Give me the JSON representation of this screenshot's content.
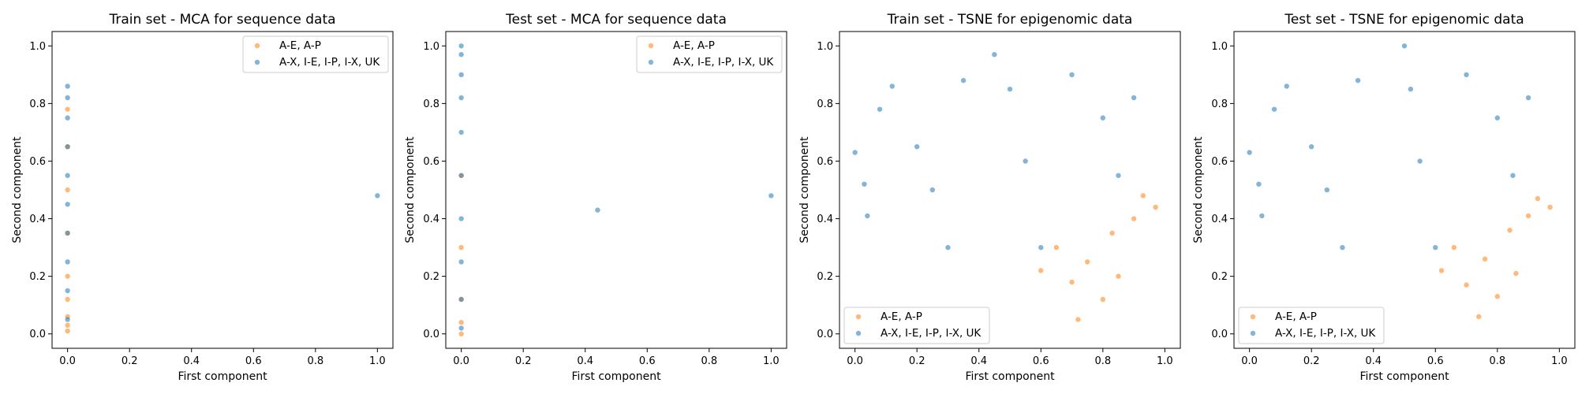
{
  "colors": {
    "series_a": "#ff7f0e",
    "series_b": "#1f77b4"
  },
  "chart_data": [
    {
      "type": "scatter",
      "title": "Train set - MCA for sequence data",
      "xlabel": "First component",
      "ylabel": "Second component",
      "xlim": [
        -0.05,
        1.05
      ],
      "ylim": [
        -0.05,
        1.05
      ],
      "xticks": [
        "0.0",
        "0.2",
        "0.4",
        "0.6",
        "0.8",
        "1.0"
      ],
      "yticks": [
        "0.0",
        "0.2",
        "0.4",
        "0.6",
        "0.8",
        "1.0"
      ],
      "legend_position": "top-right",
      "series": [
        {
          "name": "A-E, A-P",
          "color": "#ff7f0e",
          "points": [
            [
              0,
              0.01
            ],
            [
              0,
              0.03
            ],
            [
              0,
              0.06
            ],
            [
              0,
              0.12
            ],
            [
              0,
              0.2
            ],
            [
              0,
              0.35
            ],
            [
              0,
              0.5
            ],
            [
              0,
              0.65
            ],
            [
              0,
              0.78
            ]
          ]
        },
        {
          "name": "A-X, I-E, I-P, I-X, UK",
          "color": "#1f77b4",
          "points": [
            [
              0,
              0.05
            ],
            [
              0,
              0.15
            ],
            [
              0,
              0.25
            ],
            [
              0,
              0.35
            ],
            [
              0,
              0.45
            ],
            [
              0,
              0.55
            ],
            [
              0,
              0.65
            ],
            [
              0,
              0.75
            ],
            [
              0,
              0.82
            ],
            [
              0,
              0.86
            ],
            [
              1.0,
              0.48
            ]
          ]
        }
      ]
    },
    {
      "type": "scatter",
      "title": "Test set - MCA for sequence data",
      "xlabel": "First component",
      "ylabel": "Second component",
      "xlim": [
        -0.05,
        1.05
      ],
      "ylim": [
        -0.05,
        1.05
      ],
      "xticks": [
        "0.0",
        "0.2",
        "0.4",
        "0.6",
        "0.8",
        "1.0"
      ],
      "yticks": [
        "0.0",
        "0.2",
        "0.4",
        "0.6",
        "0.8",
        "1.0"
      ],
      "legend_position": "top-right",
      "series": [
        {
          "name": "A-E, A-P",
          "color": "#ff7f0e",
          "points": [
            [
              0,
              0.0
            ],
            [
              0,
              0.04
            ],
            [
              0,
              0.12
            ],
            [
              0,
              0.3
            ],
            [
              0,
              0.55
            ]
          ]
        },
        {
          "name": "A-X, I-E, I-P, I-X, UK",
          "color": "#1f77b4",
          "points": [
            [
              0,
              0.02
            ],
            [
              0,
              0.12
            ],
            [
              0,
              0.25
            ],
            [
              0,
              0.4
            ],
            [
              0,
              0.55
            ],
            [
              0,
              0.7
            ],
            [
              0,
              0.82
            ],
            [
              0,
              0.9
            ],
            [
              0,
              0.97
            ],
            [
              0,
              1.0
            ],
            [
              0.44,
              0.43
            ],
            [
              1.0,
              0.48
            ]
          ]
        }
      ]
    },
    {
      "type": "scatter",
      "title": "Train set - TSNE for epigenomic data",
      "xlabel": "First component",
      "ylabel": "Second component",
      "xlim": [
        -0.05,
        1.05
      ],
      "ylim": [
        -0.05,
        1.05
      ],
      "xticks": [
        "0.0",
        "0.2",
        "0.4",
        "0.6",
        "0.8",
        "1.0"
      ],
      "yticks": [
        "0.0",
        "0.2",
        "0.4",
        "0.6",
        "0.8",
        "1.0"
      ],
      "legend_position": "bottom-left",
      "series": [
        {
          "name": "A-E, A-P",
          "color": "#ff7f0e",
          "points": [
            [
              0.6,
              0.22
            ],
            [
              0.65,
              0.3
            ],
            [
              0.7,
              0.18
            ],
            [
              0.72,
              0.05
            ],
            [
              0.75,
              0.25
            ],
            [
              0.8,
              0.12
            ],
            [
              0.83,
              0.35
            ],
            [
              0.85,
              0.2
            ],
            [
              0.9,
              0.4
            ],
            [
              0.93,
              0.48
            ],
            [
              0.97,
              0.44
            ]
          ]
        },
        {
          "name": "A-X, I-E, I-P, I-X, UK",
          "color": "#1f77b4",
          "points": [
            [
              0.0,
              0.63
            ],
            [
              0.03,
              0.52
            ],
            [
              0.04,
              0.41
            ],
            [
              0.08,
              0.78
            ],
            [
              0.12,
              0.86
            ],
            [
              0.2,
              0.65
            ],
            [
              0.25,
              0.5
            ],
            [
              0.3,
              0.3
            ],
            [
              0.35,
              0.88
            ],
            [
              0.45,
              0.97
            ],
            [
              0.5,
              0.85
            ],
            [
              0.55,
              0.6
            ],
            [
              0.6,
              0.3
            ],
            [
              0.7,
              0.9
            ],
            [
              0.8,
              0.75
            ],
            [
              0.85,
              0.55
            ],
            [
              0.9,
              0.82
            ]
          ]
        }
      ]
    },
    {
      "type": "scatter",
      "title": "Test set - TSNE for epigenomic data",
      "xlabel": "First component",
      "ylabel": "Second component",
      "xlim": [
        -0.05,
        1.05
      ],
      "ylim": [
        -0.05,
        1.05
      ],
      "xticks": [
        "0.0",
        "0.2",
        "0.4",
        "0.6",
        "0.8",
        "1.0"
      ],
      "yticks": [
        "0.0",
        "0.2",
        "0.4",
        "0.6",
        "0.8",
        "1.0"
      ],
      "legend_position": "bottom-left",
      "series": [
        {
          "name": "A-E, A-P",
          "color": "#ff7f0e",
          "points": [
            [
              0.62,
              0.22
            ],
            [
              0.66,
              0.3
            ],
            [
              0.7,
              0.17
            ],
            [
              0.74,
              0.06
            ],
            [
              0.76,
              0.26
            ],
            [
              0.8,
              0.13
            ],
            [
              0.84,
              0.36
            ],
            [
              0.86,
              0.21
            ],
            [
              0.9,
              0.41
            ],
            [
              0.93,
              0.47
            ],
            [
              0.97,
              0.44
            ]
          ]
        },
        {
          "name": "A-X, I-E, I-P, I-X, UK",
          "color": "#1f77b4",
          "points": [
            [
              0.0,
              0.63
            ],
            [
              0.03,
              0.52
            ],
            [
              0.04,
              0.41
            ],
            [
              0.08,
              0.78
            ],
            [
              0.12,
              0.86
            ],
            [
              0.2,
              0.65
            ],
            [
              0.25,
              0.5
            ],
            [
              0.3,
              0.3
            ],
            [
              0.35,
              0.88
            ],
            [
              0.5,
              1.0
            ],
            [
              0.52,
              0.85
            ],
            [
              0.55,
              0.6
            ],
            [
              0.6,
              0.3
            ],
            [
              0.7,
              0.9
            ],
            [
              0.8,
              0.75
            ],
            [
              0.85,
              0.55
            ],
            [
              0.9,
              0.82
            ]
          ]
        }
      ]
    }
  ]
}
